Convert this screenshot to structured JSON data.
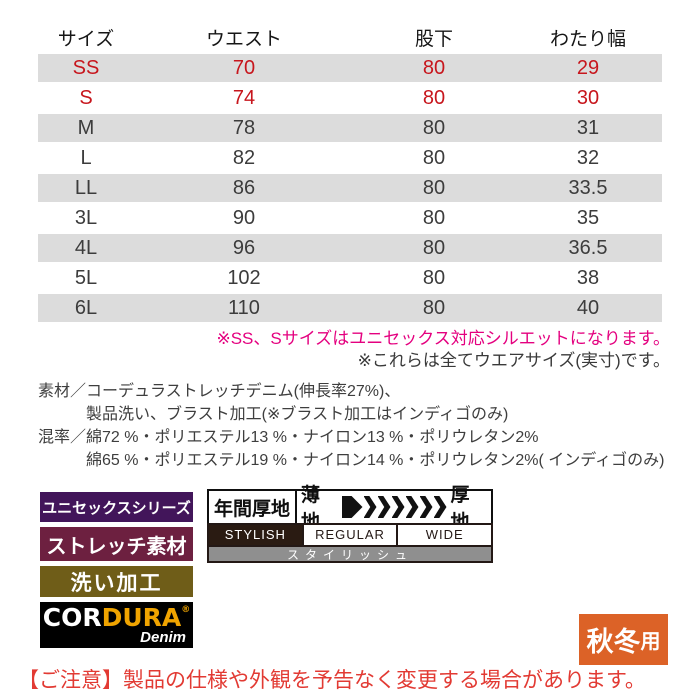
{
  "size_chart": {
    "headers": [
      "サイズ",
      "ウエスト",
      "股下",
      "わたり幅"
    ],
    "rows": [
      {
        "size": "SS",
        "waist": "70",
        "inseam": "80",
        "thigh": "29",
        "accent": true
      },
      {
        "size": "S",
        "waist": "74",
        "inseam": "80",
        "thigh": "30",
        "accent": true
      },
      {
        "size": "M",
        "waist": "78",
        "inseam": "80",
        "thigh": "31",
        "accent": false
      },
      {
        "size": "L",
        "waist": "82",
        "inseam": "80",
        "thigh": "32",
        "accent": false
      },
      {
        "size": "LL",
        "waist": "86",
        "inseam": "80",
        "thigh": "33.5",
        "accent": false
      },
      {
        "size": "3L",
        "waist": "90",
        "inseam": "80",
        "thigh": "35",
        "accent": false
      },
      {
        "size": "4L",
        "waist": "96",
        "inseam": "80",
        "thigh": "36.5",
        "accent": false
      },
      {
        "size": "5L",
        "waist": "102",
        "inseam": "80",
        "thigh": "38",
        "accent": false
      },
      {
        "size": "6L",
        "waist": "110",
        "inseam": "80",
        "thigh": "40",
        "accent": false
      }
    ],
    "note_unisex": "※SS、Sサイズはユニセックス対応シルエットになります。",
    "note_actual": "※これらは全てウエアサイズ(実寸)です。"
  },
  "materials": {
    "lines": [
      "素材／コーデュラストレッチデニム(伸長率27%)、",
      "製品洗い、ブラスト加工(※ブラスト加工はインディゴのみ)",
      "混率／綿72 %・ポリエステル13 %・ナイロン13 %・ポリウレタン2%",
      "綿65 %・ポリエステル19 %・ナイロン14 %・ポリウレタン2%( インディゴのみ)"
    ]
  },
  "feature_badges": [
    {
      "label": "ユニセックスシリーズ",
      "bg": "#42155a"
    },
    {
      "label": "ストレッチ素材",
      "bg": "#6d2040"
    },
    {
      "label": "洗い加工",
      "bg": "#6f5d18"
    }
  ],
  "cordura_badge": {
    "brand_part1": "COR",
    "brand_part2": "DURA",
    "registered": "®",
    "sub_label": "Denim",
    "bg": "#000000",
    "accent": "#f0a400"
  },
  "thickness": {
    "label": "年間厚地",
    "thin_label": "薄地",
    "thick_label": "厚地"
  },
  "silhouette": {
    "options": [
      "STYLISH",
      "REGULAR",
      "WIDE"
    ],
    "selected": "STYLISH",
    "caption": "スタイリッシュ"
  },
  "season_badge": {
    "label_main": "秋冬",
    "label_suffix": "用",
    "bg": "#dc6227"
  },
  "notice": "【ご注意】製品の仕様や外観を予告なく変更する場合があります。",
  "colors": {
    "table_accent_red": "#c7161d",
    "note_pink": "#e4007f",
    "notice_red": "#e23a33",
    "row_shade_grey": "#dcdcdc",
    "silhouette_selected_bg": "#2a1b12",
    "silhouette_caption_bg": "#8f8f8f"
  }
}
